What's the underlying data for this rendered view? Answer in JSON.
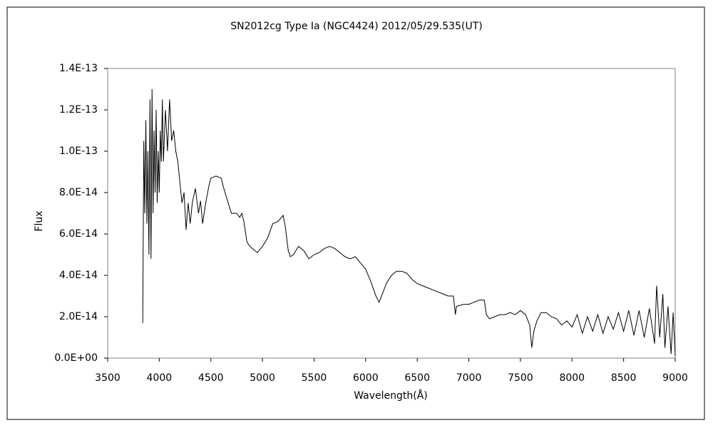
{
  "chart_data": {
    "type": "line",
    "title": "SN2012cg  Type Ia (NGC4424)    2012/05/29.535(UT)",
    "x_label": "Wavelength(Å)",
    "y_label": "Flux",
    "xlim": [
      3500,
      9000
    ],
    "xticks": [
      3500,
      4000,
      4500,
      5000,
      5500,
      6000,
      6500,
      7000,
      7500,
      8000,
      8500,
      9000
    ],
    "ylim": [
      0,
      1.4e-13
    ],
    "yticks": [
      {
        "value": 0,
        "label": "0.0E+00"
      },
      {
        "value": 2e-14,
        "label": "2.0E-14"
      },
      {
        "value": 4e-14,
        "label": "4.0E-14"
      },
      {
        "value": 6e-14,
        "label": "6.0E-14"
      },
      {
        "value": 8e-14,
        "label": "8.0E-14"
      },
      {
        "value": 1e-13,
        "label": "1.0E-13"
      },
      {
        "value": 1.2e-13,
        "label": "1.2E-13"
      },
      {
        "value": 1.4e-13,
        "label": "1.4E-13"
      }
    ],
    "grid": false,
    "color": "#000000",
    "x": [
      3840,
      3850,
      3860,
      3870,
      3880,
      3890,
      3900,
      3910,
      3920,
      3930,
      3940,
      3950,
      3960,
      3970,
      3980,
      3990,
      4000,
      4010,
      4020,
      4030,
      4040,
      4060,
      4080,
      4100,
      4120,
      4140,
      4160,
      4180,
      4200,
      4220,
      4240,
      4260,
      4280,
      4300,
      4320,
      4350,
      4380,
      4400,
      4420,
      4450,
      4480,
      4500,
      4550,
      4600,
      4620,
      4650,
      4680,
      4700,
      4750,
      4780,
      4800,
      4820,
      4850,
      4880,
      4900,
      4950,
      5000,
      5050,
      5100,
      5150,
      5200,
      5220,
      5250,
      5270,
      5300,
      5350,
      5400,
      5450,
      5500,
      5550,
      5600,
      5650,
      5700,
      5750,
      5800,
      5850,
      5900,
      5950,
      6000,
      6050,
      6100,
      6130,
      6170,
      6200,
      6250,
      6300,
      6350,
      6400,
      6450,
      6500,
      6550,
      6600,
      6650,
      6700,
      6750,
      6800,
      6850,
      6870,
      6880,
      6950,
      7000,
      7050,
      7100,
      7150,
      7170,
      7200,
      7250,
      7300,
      7350,
      7400,
      7450,
      7500,
      7550,
      7590,
      7610,
      7630,
      7660,
      7700,
      7750,
      7800,
      7850,
      7900,
      7950,
      8000,
      8050,
      8100,
      8150,
      8200,
      8250,
      8300,
      8350,
      8400,
      8450,
      8500,
      8550,
      8600,
      8650,
      8700,
      8750,
      8800,
      8820,
      8850,
      8880,
      8900,
      8930,
      8960,
      8980,
      9000
    ],
    "values": [
      1.7e-14,
      1.05e-13,
      7e-14,
      1.15e-13,
      6.5e-14,
      1e-13,
      5e-14,
      1.25e-13,
      4.8e-14,
      1.3e-13,
      7e-14,
      1.1e-13,
      8e-14,
      1.2e-13,
      7.5e-14,
      1e-13,
      8e-14,
      1.1e-13,
      9.5e-14,
      1.25e-13,
      9.5e-14,
      1.2e-13,
      1e-13,
      1.25e-13,
      1.05e-13,
      1.1e-13,
      1e-13,
      9.5e-14,
      8.5e-14,
      7.5e-14,
      8e-14,
      6.2e-14,
      7.5e-14,
      6.5e-14,
      7.5e-14,
      8.2e-14,
      7e-14,
      7.6e-14,
      6.5e-14,
      7.5e-14,
      8.3e-14,
      8.7e-14,
      8.8e-14,
      8.7e-14,
      8.3e-14,
      7.8e-14,
      7.3e-14,
      7e-14,
      7e-14,
      6.8e-14,
      7e-14,
      6.6e-14,
      5.6e-14,
      5.4e-14,
      5.3e-14,
      5.1e-14,
      5.4e-14,
      5.8e-14,
      6.5e-14,
      6.6e-14,
      6.9e-14,
      6.4e-14,
      5.2e-14,
      4.9e-14,
      5e-14,
      5.4e-14,
      5.2e-14,
      4.8e-14,
      5e-14,
      5.1e-14,
      5.3e-14,
      5.4e-14,
      5.3e-14,
      5.1e-14,
      4.9e-14,
      4.8e-14,
      4.9e-14,
      4.6e-14,
      4.3e-14,
      3.7e-14,
      3e-14,
      2.7e-14,
      3.2e-14,
      3.6e-14,
      4e-14,
      4.2e-14,
      4.2e-14,
      4.1e-14,
      3.8e-14,
      3.6e-14,
      3.5e-14,
      3.4e-14,
      3.3e-14,
      3.2e-14,
      3.1e-14,
      3e-14,
      3e-14,
      2.1e-14,
      2.5e-14,
      2.6e-14,
      2.6e-14,
      2.7e-14,
      2.8e-14,
      2.8e-14,
      2.1e-14,
      1.9e-14,
      2e-14,
      2.1e-14,
      2.1e-14,
      2.2e-14,
      2.1e-14,
      2.3e-14,
      2.1e-14,
      1.6e-14,
      5e-15,
      1.3e-14,
      1.8e-14,
      2.2e-14,
      2.2e-14,
      2e-14,
      1.9e-14,
      1.6e-14,
      1.8e-14,
      1.5e-14,
      2.1e-14,
      1.2e-14,
      2e-14,
      1.3e-14,
      2.1e-14,
      1.2e-14,
      2e-14,
      1.4e-14,
      2.2e-14,
      1.3e-14,
      2.3e-14,
      1.1e-14,
      2.3e-14,
      1e-14,
      2.4e-14,
      7e-15,
      3.5e-14,
      1e-14,
      3.1e-14,
      5e-15,
      2.5e-14,
      2e-15,
      2.2e-14,
      1e-15
    ]
  }
}
